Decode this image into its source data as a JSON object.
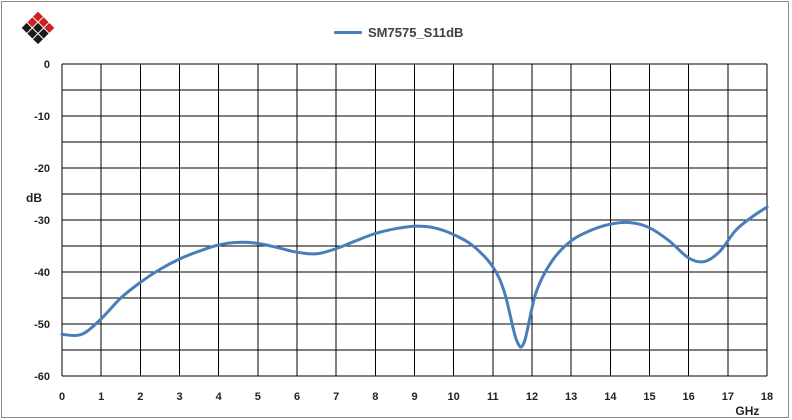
{
  "chart_data": {
    "type": "line",
    "title": "",
    "xlabel": "GHz",
    "ylabel": "dB",
    "xlim": [
      0,
      18
    ],
    "ylim": [
      -60,
      0
    ],
    "x_ticks": [
      0,
      1,
      2,
      3,
      4,
      5,
      6,
      7,
      8,
      9,
      10,
      11,
      12,
      13,
      14,
      15,
      16,
      17,
      18
    ],
    "y_ticks": [
      0,
      -10,
      -20,
      -30,
      -40,
      -50,
      -60
    ],
    "grid": true,
    "legend_position": "top",
    "series": [
      {
        "name": "SM7575_S11dB",
        "color": "#4a7ebb",
        "x": [
          0,
          0.5,
          1,
          1.5,
          2,
          2.5,
          3,
          3.5,
          4,
          4.5,
          5,
          5.5,
          6,
          6.5,
          7,
          7.5,
          8,
          8.5,
          9,
          9.5,
          10,
          10.5,
          11,
          11.3,
          11.6,
          11.8,
          12.1,
          12.5,
          13,
          13.5,
          14,
          14.5,
          15,
          15.5,
          16,
          16.4,
          16.8,
          17.2,
          17.6,
          18
        ],
        "y": [
          -52,
          -52,
          -49,
          -45,
          -42,
          -39.5,
          -37.5,
          -36,
          -34.8,
          -34.3,
          -34.5,
          -35.3,
          -36.2,
          -36.5,
          -35.5,
          -34,
          -32.6,
          -31.7,
          -31.2,
          -31.5,
          -32.8,
          -35,
          -39,
          -44,
          -53,
          -53.5,
          -44,
          -38,
          -34,
          -32,
          -30.8,
          -30.5,
          -31.5,
          -34,
          -37.3,
          -38,
          -36,
          -32,
          -29.5,
          -27.5
        ]
      }
    ]
  },
  "legend": {
    "label": "SM7575_S11dB"
  },
  "logo": {
    "colors": [
      "#cc1f1f",
      "#1a1a1a"
    ]
  }
}
